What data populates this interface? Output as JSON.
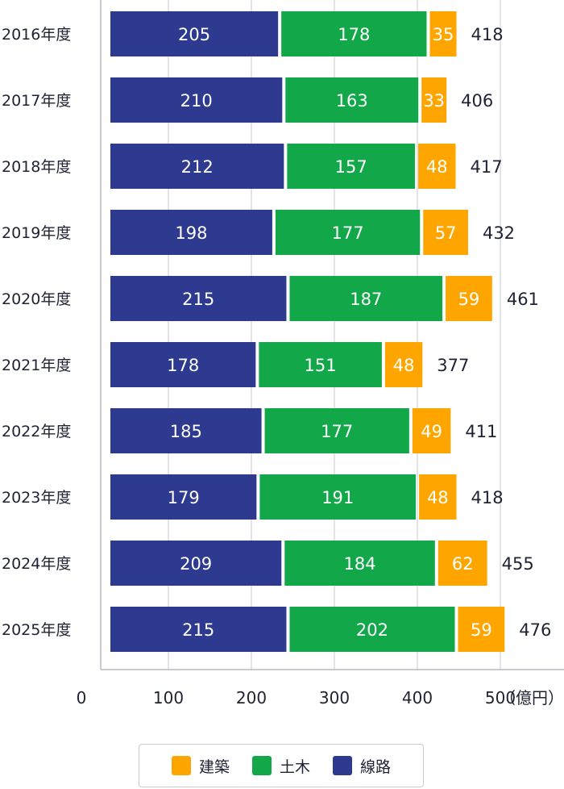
{
  "chart_data": {
    "type": "bar",
    "orientation": "horizontal",
    "stacked": true,
    "categories": [
      "2016年度",
      "2017年度",
      "2018年度",
      "2019年度",
      "2020年度",
      "2021年度",
      "2022年度",
      "2023年度",
      "2024年度",
      "2025年度"
    ],
    "series": [
      {
        "name": "線路",
        "color": "#2e3a8f",
        "values": [
          205,
          210,
          212,
          198,
          215,
          178,
          185,
          179,
          209,
          215
        ]
      },
      {
        "name": "土木",
        "color": "#12a84a",
        "values": [
          178,
          163,
          157,
          177,
          187,
          151,
          177,
          191,
          184,
          202
        ]
      },
      {
        "name": "建築",
        "color": "#ffa500",
        "values": [
          35,
          33,
          48,
          57,
          59,
          48,
          49,
          48,
          62,
          59
        ]
      }
    ],
    "totals": [
      418,
      406,
      417,
      432,
      461,
      377,
      411,
      418,
      455,
      476
    ],
    "xticks": [
      0,
      100,
      200,
      300,
      400,
      500
    ],
    "xlim": [
      0,
      560
    ],
    "unit": "（億円）",
    "grid": true,
    "legend": {
      "position": "bottom",
      "items": [
        {
          "name": "建築",
          "color": "#ffa500"
        },
        {
          "name": "土木",
          "color": "#12a84a"
        },
        {
          "name": "線路",
          "color": "#2e3a8f"
        }
      ]
    }
  }
}
